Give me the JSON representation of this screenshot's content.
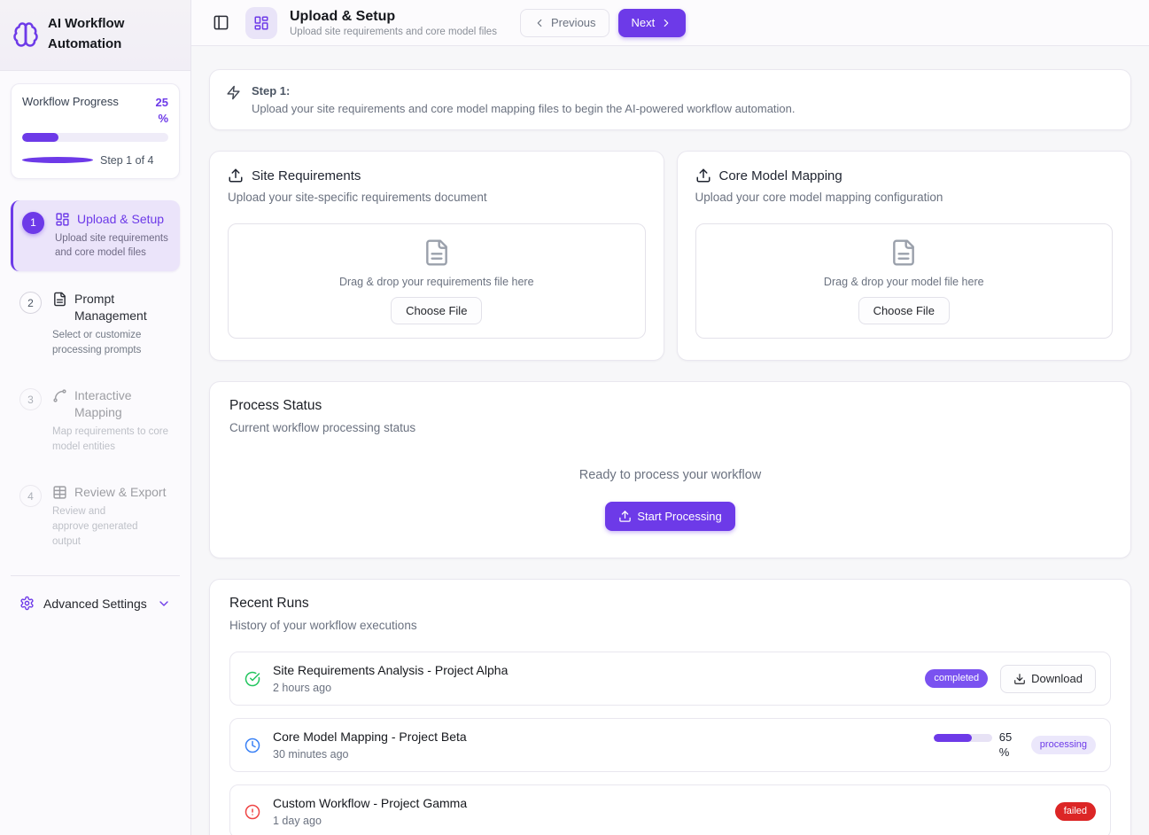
{
  "app": {
    "title": "AI Workflow Automation"
  },
  "colors": {
    "accent": "#6d3ae8",
    "accent_light_bg": "#ebe4fa",
    "completed_badge": "#7a52f0",
    "processing_badge_bg": "#ebe7fb",
    "failed_badge": "#dc2626",
    "success_icon": "#22c55e",
    "info_icon": "#3b82f6",
    "error_icon": "#ef4444"
  },
  "sidebar": {
    "progress": {
      "label": "Workflow Progress",
      "percent_label": "25 %",
      "percent_value": 25,
      "step_text": "Step 1 of 4"
    },
    "steps": [
      {
        "num": "1",
        "label": "Upload & Setup",
        "desc": "Upload site requirements and core model files",
        "state": "active"
      },
      {
        "num": "2",
        "label": "Prompt Management",
        "desc": "Select or customize processing prompts",
        "state": "enabled"
      },
      {
        "num": "3",
        "label": "Interactive Mapping",
        "desc": "Map requirements to core model entities",
        "state": "disabled"
      },
      {
        "num": "4",
        "label": "Review & Export",
        "desc": "Review and approve generated output",
        "state": "disabled"
      }
    ],
    "advanced_settings_label": "Advanced Settings"
  },
  "header": {
    "title": "Upload & Setup",
    "subtitle": "Upload site requirements and core model files",
    "previous_label": "Previous",
    "next_label": "Next"
  },
  "step_banner": {
    "title": "Step 1:",
    "description": "Upload your site requirements and core model mapping files to begin the AI-powered workflow automation."
  },
  "upload_cards": [
    {
      "title": "Site Requirements",
      "subtitle": "Upload your site-specific requirements document",
      "dropzone_text": "Drag & drop your requirements file here",
      "button_label": "Choose File"
    },
    {
      "title": "Core Model Mapping",
      "subtitle": "Upload your core model mapping configuration",
      "dropzone_text": "Drag & drop your model file here",
      "button_label": "Choose File"
    }
  ],
  "process_status": {
    "title": "Process Status",
    "subtitle": "Current workflow processing status",
    "ready_text": "Ready to process your workflow",
    "start_button_label": "Start Processing"
  },
  "recent_runs": {
    "title": "Recent Runs",
    "subtitle": "History of your workflow executions",
    "runs": [
      {
        "name": "Site Requirements Analysis - Project Alpha",
        "time": "2 hours ago",
        "status": "completed",
        "action_label": "Download"
      },
      {
        "name": "Core Model Mapping - Project Beta",
        "time": "30 minutes ago",
        "status": "processing",
        "progress_label": "65 %",
        "progress_value": 65
      },
      {
        "name": "Custom Workflow - Project Gamma",
        "time": "1 day ago",
        "status": "failed"
      }
    ]
  }
}
